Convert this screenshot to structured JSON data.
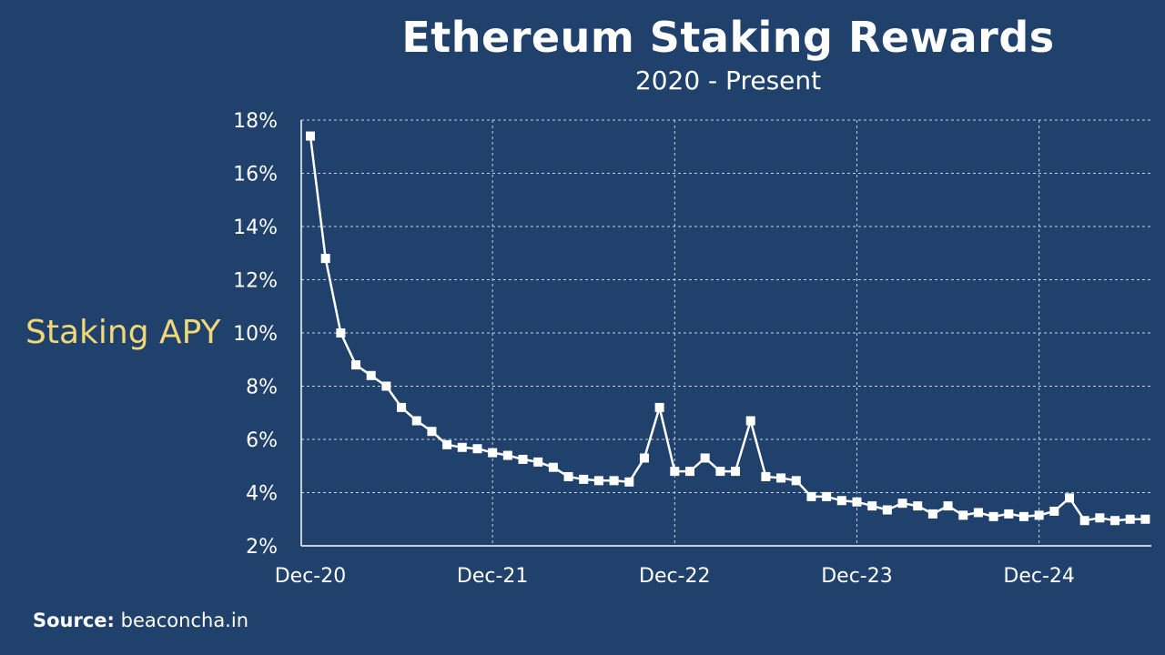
{
  "chart_data": {
    "type": "line",
    "title": "Ethereum Staking Rewards",
    "subtitle": "2020 - Present",
    "ylabel": "Staking APY",
    "xlabel": "",
    "y_ticks": [
      "2%",
      "4%",
      "6%",
      "8%",
      "10%",
      "12%",
      "14%",
      "16%",
      "18%"
    ],
    "ylim": [
      2,
      18
    ],
    "x_ticks": [
      "Dec-20",
      "Dec-21",
      "Dec-22",
      "Dec-23",
      "Dec-24"
    ],
    "x_tick_index": [
      0,
      12,
      24,
      36,
      48
    ],
    "grid": true,
    "series": [
      {
        "values": [
          17.4,
          12.8,
          10.0,
          8.8,
          8.4,
          8.0,
          7.2,
          6.7,
          6.3,
          5.8,
          5.7,
          5.65,
          5.5,
          5.4,
          5.25,
          5.15,
          4.95,
          4.6,
          4.5,
          4.45,
          4.45,
          4.4,
          5.3,
          7.2,
          4.8,
          4.8,
          5.3,
          4.8,
          4.8,
          6.7,
          4.6,
          4.55,
          4.45,
          3.85,
          3.85,
          3.7,
          3.65,
          3.5,
          3.35,
          3.6,
          3.5,
          3.2,
          3.5,
          3.15,
          3.25,
          3.1,
          3.2,
          3.1,
          3.15,
          3.3,
          3.8,
          2.95,
          3.05,
          2.95,
          3.0,
          3.0
        ]
      }
    ]
  },
  "source": {
    "label": "Source:",
    "text": "beaconcha.in"
  },
  "colors": {
    "background": "#1f416c",
    "line": "#ffffff",
    "ylabel": "#f0d878"
  }
}
